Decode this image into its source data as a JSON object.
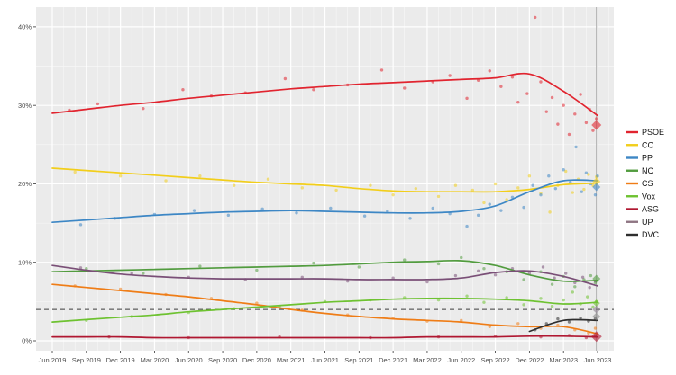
{
  "page": {
    "background": "#ffffff",
    "plot_bg": "#ebebeb",
    "grid_major": "#ffffff",
    "axis_text_color": "#4d4d4d",
    "tick_color": "#333333",
    "legend_text_color": "#111111"
  },
  "chart_data": {
    "type": "line",
    "title": "",
    "xlabel": "",
    "ylabel": "",
    "x_axis": {
      "tick_labels": [
        "Jun 2019",
        "Sep 2019",
        "Dec 2019",
        "Mar 2020",
        "Jun 2020",
        "Sep 2020",
        "Dec 2020",
        "Mar 2021",
        "Jun 2021",
        "Sep 2021",
        "Dec 2021",
        "Mar 2022",
        "Jun 2022",
        "Sep 2022",
        "Dec 2022",
        "Mar 2023",
        "Jun 2023"
      ],
      "tick_months": [
        0,
        3,
        6,
        9,
        12,
        15,
        18,
        21,
        24,
        27,
        30,
        33,
        36,
        39,
        42,
        45,
        48
      ],
      "minor_every_month": true
    },
    "y_axis": {
      "tick_labels": [
        "0%",
        "10%",
        "20%",
        "30%",
        "40%"
      ],
      "tick_values": [
        0,
        10,
        20,
        30,
        40
      ],
      "minor_values": [
        5,
        15,
        25,
        35
      ],
      "range": [
        0,
        42.5
      ]
    },
    "threshold_line": {
      "value": 4,
      "style": "dashed",
      "color": "#3d3d3d"
    },
    "election_line": {
      "x_month": 47.9,
      "color": "#a8a8a8"
    },
    "categories_months": [
      0,
      3,
      6,
      9,
      12,
      15,
      18,
      21,
      24,
      27,
      30,
      33,
      36,
      39,
      42,
      45,
      48
    ],
    "series": [
      {
        "name": "CS",
        "color": "#ef7d17",
        "result": null,
        "values": [
          7.2,
          6.8,
          6.4,
          6.0,
          5.6,
          5.1,
          4.6,
          4.0,
          3.5,
          3.1,
          2.8,
          2.6,
          2.4,
          2.0,
          1.8,
          1.8,
          0.9
        ],
        "scatter": [
          [
            2,
            7.0
          ],
          [
            6,
            6.6
          ],
          [
            10,
            5.9
          ],
          [
            14,
            5.4
          ],
          [
            18,
            4.8
          ],
          [
            22,
            3.9
          ],
          [
            26,
            3.3
          ],
          [
            30,
            2.9
          ],
          [
            33,
            2.5
          ],
          [
            36,
            2.6
          ],
          [
            38.5,
            1.8
          ],
          [
            41,
            2.2
          ],
          [
            43,
            1.6
          ],
          [
            44.5,
            2.0
          ],
          [
            46,
            1.4
          ],
          [
            47.2,
            1.0
          ],
          [
            47.8,
            1.6
          ]
        ]
      },
      {
        "name": "ASG",
        "color": "#b01731",
        "result": 0.55,
        "result_size": 6,
        "values": [
          0.5,
          0.5,
          0.5,
          0.4,
          0.4,
          0.4,
          0.4,
          0.4,
          0.4,
          0.4,
          0.4,
          0.5,
          0.5,
          0.5,
          0.6,
          0.6,
          0.5
        ],
        "scatter": [
          [
            5,
            0.5
          ],
          [
            12,
            0.4
          ],
          [
            20,
            0.5
          ],
          [
            28,
            0.4
          ],
          [
            34,
            0.5
          ],
          [
            39,
            0.6
          ],
          [
            43,
            0.5
          ],
          [
            45.5,
            0.7
          ],
          [
            47,
            0.4
          ],
          [
            47.8,
            0.6
          ]
        ]
      },
      {
        "name": "Vox",
        "color": "#6ec231",
        "result": 4.8,
        "result_size": 4,
        "values": [
          2.4,
          2.7,
          3.0,
          3.3,
          3.7,
          4.0,
          4.3,
          4.6,
          4.9,
          5.1,
          5.3,
          5.4,
          5.4,
          5.3,
          5.1,
          4.7,
          4.9
        ],
        "scatter": [
          [
            3,
            2.6
          ],
          [
            7,
            3.1
          ],
          [
            12,
            3.6
          ],
          [
            16,
            4.1
          ],
          [
            20,
            4.4
          ],
          [
            24,
            5.0
          ],
          [
            28,
            5.2
          ],
          [
            31,
            5.5
          ],
          [
            34,
            5.2
          ],
          [
            36.5,
            5.7
          ],
          [
            38,
            4.9
          ],
          [
            40,
            5.5
          ],
          [
            41.5,
            4.6
          ],
          [
            43,
            5.4
          ],
          [
            44,
            4.4
          ],
          [
            45,
            5.2
          ],
          [
            45.8,
            6.2
          ],
          [
            46.5,
            4.7
          ],
          [
            47.1,
            5.6
          ],
          [
            47.6,
            4.3
          ],
          [
            47.9,
            5.0
          ]
        ]
      },
      {
        "name": "NC",
        "color": "#529c3f",
        "result": 7.9,
        "result_size": 4.5,
        "values": [
          8.8,
          8.9,
          9.0,
          9.1,
          9.2,
          9.3,
          9.4,
          9.5,
          9.6,
          9.8,
          10.0,
          10.1,
          10.2,
          9.6,
          8.4,
          7.6,
          7.7
        ],
        "scatter": [
          [
            3,
            9.2
          ],
          [
            8,
            8.6
          ],
          [
            13,
            9.5
          ],
          [
            18,
            9.0
          ],
          [
            23,
            9.9
          ],
          [
            27,
            9.4
          ],
          [
            31,
            10.3
          ],
          [
            34,
            9.8
          ],
          [
            36,
            10.6
          ],
          [
            38,
            9.2
          ],
          [
            40,
            8.8
          ],
          [
            41.5,
            7.8
          ],
          [
            43,
            8.8
          ],
          [
            44,
            7.2
          ],
          [
            45,
            8.2
          ],
          [
            46,
            6.9
          ],
          [
            46.8,
            7.8
          ],
          [
            47.4,
            8.3
          ],
          [
            47.8,
            7.4
          ]
        ]
      },
      {
        "name": "UP",
        "color": "#7a4f77",
        "result": 4.0,
        "result_size": 4.5,
        "result_color": "#8c8190",
        "values": [
          9.6,
          9.0,
          8.5,
          8.2,
          8.0,
          7.9,
          7.9,
          7.9,
          7.9,
          7.8,
          7.8,
          7.8,
          8.0,
          8.7,
          8.9,
          8.2,
          7.0
        ],
        "scatter": [
          [
            2.5,
            9.3
          ],
          [
            7,
            8.6
          ],
          [
            12,
            8.1
          ],
          [
            17,
            7.8
          ],
          [
            22,
            8.1
          ],
          [
            26,
            7.6
          ],
          [
            30,
            8.0
          ],
          [
            33,
            7.5
          ],
          [
            35.5,
            8.3
          ],
          [
            37.5,
            8.9
          ],
          [
            39,
            8.4
          ],
          [
            40.5,
            9.2
          ],
          [
            42,
            8.6
          ],
          [
            43.2,
            9.4
          ],
          [
            44.2,
            8.0
          ],
          [
            45.2,
            8.6
          ],
          [
            46,
            7.4
          ],
          [
            46.7,
            8.1
          ],
          [
            47.3,
            6.8
          ],
          [
            47.8,
            7.6
          ]
        ]
      },
      {
        "name": "DVC",
        "color": "#2e2e2e",
        "result": 3.1,
        "result_size": 4.5,
        "result_color": "#8a8a8a",
        "values": [
          null,
          null,
          null,
          null,
          null,
          null,
          null,
          null,
          null,
          null,
          null,
          null,
          null,
          null,
          1.2,
          2.6,
          2.6
        ],
        "scatter": [
          [
            42.5,
            1.4
          ],
          [
            43.5,
            2.2
          ],
          [
            44.5,
            2.8
          ],
          [
            45.5,
            2.4
          ],
          [
            46.5,
            2.9
          ],
          [
            47.2,
            2.5
          ],
          [
            47.8,
            2.8
          ]
        ]
      },
      {
        "name": "CC",
        "color": "#f2ce1b",
        "result": 20.3,
        "result_size": 4.5,
        "values": [
          22.0,
          21.7,
          21.4,
          21.1,
          20.8,
          20.5,
          20.2,
          20.0,
          19.8,
          19.4,
          19.1,
          19.0,
          19.0,
          19.0,
          19.3,
          19.9,
          20.1
        ],
        "scatter": [
          [
            2,
            21.5
          ],
          [
            6,
            21.0
          ],
          [
            10,
            20.4
          ],
          [
            13,
            21.0
          ],
          [
            16,
            19.8
          ],
          [
            19,
            20.6
          ],
          [
            22,
            19.5
          ],
          [
            25,
            19.2
          ],
          [
            28,
            19.8
          ],
          [
            30,
            18.6
          ],
          [
            32,
            19.4
          ],
          [
            34,
            18.4
          ],
          [
            35.5,
            19.8
          ],
          [
            37,
            19.2
          ],
          [
            38,
            17.6
          ],
          [
            39,
            20.0
          ],
          [
            40,
            18.0
          ],
          [
            41,
            19.5
          ],
          [
            42,
            21.0
          ],
          [
            43,
            18.8
          ],
          [
            43.8,
            16.4
          ],
          [
            44.5,
            19.8
          ],
          [
            45.2,
            21.6
          ],
          [
            45.8,
            18.9
          ],
          [
            46.3,
            20.6
          ],
          [
            46.8,
            19.3
          ],
          [
            47.2,
            21.2
          ],
          [
            47.6,
            19.8
          ],
          [
            47.9,
            20.9
          ]
        ]
      },
      {
        "name": "PP",
        "color": "#3d87c5",
        "result": 19.6,
        "result_size": 4.5,
        "values": [
          15.1,
          15.4,
          15.7,
          16.0,
          16.2,
          16.4,
          16.5,
          16.6,
          16.5,
          16.4,
          16.3,
          16.3,
          16.5,
          17.2,
          19.0,
          20.4,
          20.4
        ],
        "scatter": [
          [
            2.5,
            14.8
          ],
          [
            5.5,
            15.6
          ],
          [
            9,
            16.1
          ],
          [
            12.5,
            16.6
          ],
          [
            15.5,
            16.0
          ],
          [
            18.5,
            16.8
          ],
          [
            21.5,
            16.3
          ],
          [
            24.5,
            16.9
          ],
          [
            27.5,
            15.9
          ],
          [
            29.5,
            16.5
          ],
          [
            31.5,
            15.6
          ],
          [
            33.5,
            16.9
          ],
          [
            35,
            16.2
          ],
          [
            36.5,
            14.6
          ],
          [
            37.5,
            16.0
          ],
          [
            38.5,
            17.4
          ],
          [
            39.5,
            16.6
          ],
          [
            40.5,
            18.3
          ],
          [
            41.5,
            17.0
          ],
          [
            42.3,
            19.8
          ],
          [
            43,
            18.6
          ],
          [
            43.7,
            21.0
          ],
          [
            44.3,
            19.4
          ],
          [
            45,
            21.8
          ],
          [
            45.6,
            20.2
          ],
          [
            46.1,
            24.7
          ],
          [
            46.6,
            19.0
          ],
          [
            47,
            21.4
          ],
          [
            47.4,
            20.0
          ],
          [
            47.8,
            18.6
          ],
          [
            48,
            21.0
          ]
        ]
      },
      {
        "name": "PSOE",
        "color": "#e1242f",
        "result": 27.5,
        "result_size": 5.5,
        "values": [
          29.0,
          29.5,
          30.0,
          30.4,
          30.9,
          31.3,
          31.7,
          32.1,
          32.4,
          32.7,
          32.9,
          33.1,
          33.3,
          33.5,
          34.0,
          31.8,
          28.7
        ],
        "scatter": [
          [
            1.5,
            29.4
          ],
          [
            4,
            30.2
          ],
          [
            8,
            29.6
          ],
          [
            11.5,
            32.0
          ],
          [
            14,
            31.2
          ],
          [
            17,
            31.6
          ],
          [
            20.5,
            33.4
          ],
          [
            23,
            32.0
          ],
          [
            26,
            32.6
          ],
          [
            29,
            34.5
          ],
          [
            31,
            32.2
          ],
          [
            33.5,
            33.0
          ],
          [
            35,
            33.8
          ],
          [
            36.5,
            30.9
          ],
          [
            37.5,
            33.2
          ],
          [
            38.5,
            34.4
          ],
          [
            39.5,
            32.4
          ],
          [
            40.5,
            33.6
          ],
          [
            41,
            30.4
          ],
          [
            41.8,
            31.5
          ],
          [
            42.5,
            41.2
          ],
          [
            43,
            33.0
          ],
          [
            43.5,
            29.2
          ],
          [
            44,
            31.0
          ],
          [
            44.5,
            27.6
          ],
          [
            45,
            30.0
          ],
          [
            45.5,
            26.3
          ],
          [
            46,
            28.9
          ],
          [
            46.5,
            31.4
          ],
          [
            47,
            27.8
          ],
          [
            47.3,
            29.5
          ],
          [
            47.6,
            26.8
          ],
          [
            47.9,
            28.3
          ]
        ]
      }
    ],
    "legend": {
      "position": "right",
      "entries": [
        {
          "label": "PSOE",
          "color": "#e1242f"
        },
        {
          "label": "CC",
          "color": "#f2ce1b"
        },
        {
          "label": "PP",
          "color": "#3d87c5"
        },
        {
          "label": "NC",
          "color": "#529c3f"
        },
        {
          "label": "CS",
          "color": "#ef7d17"
        },
        {
          "label": "Vox",
          "color": "#6ec231"
        },
        {
          "label": "ASG",
          "color": "#b01731"
        },
        {
          "label": "UP",
          "color": "#8f7583"
        },
        {
          "label": "DVC",
          "color": "#2e2e2e"
        }
      ]
    }
  }
}
